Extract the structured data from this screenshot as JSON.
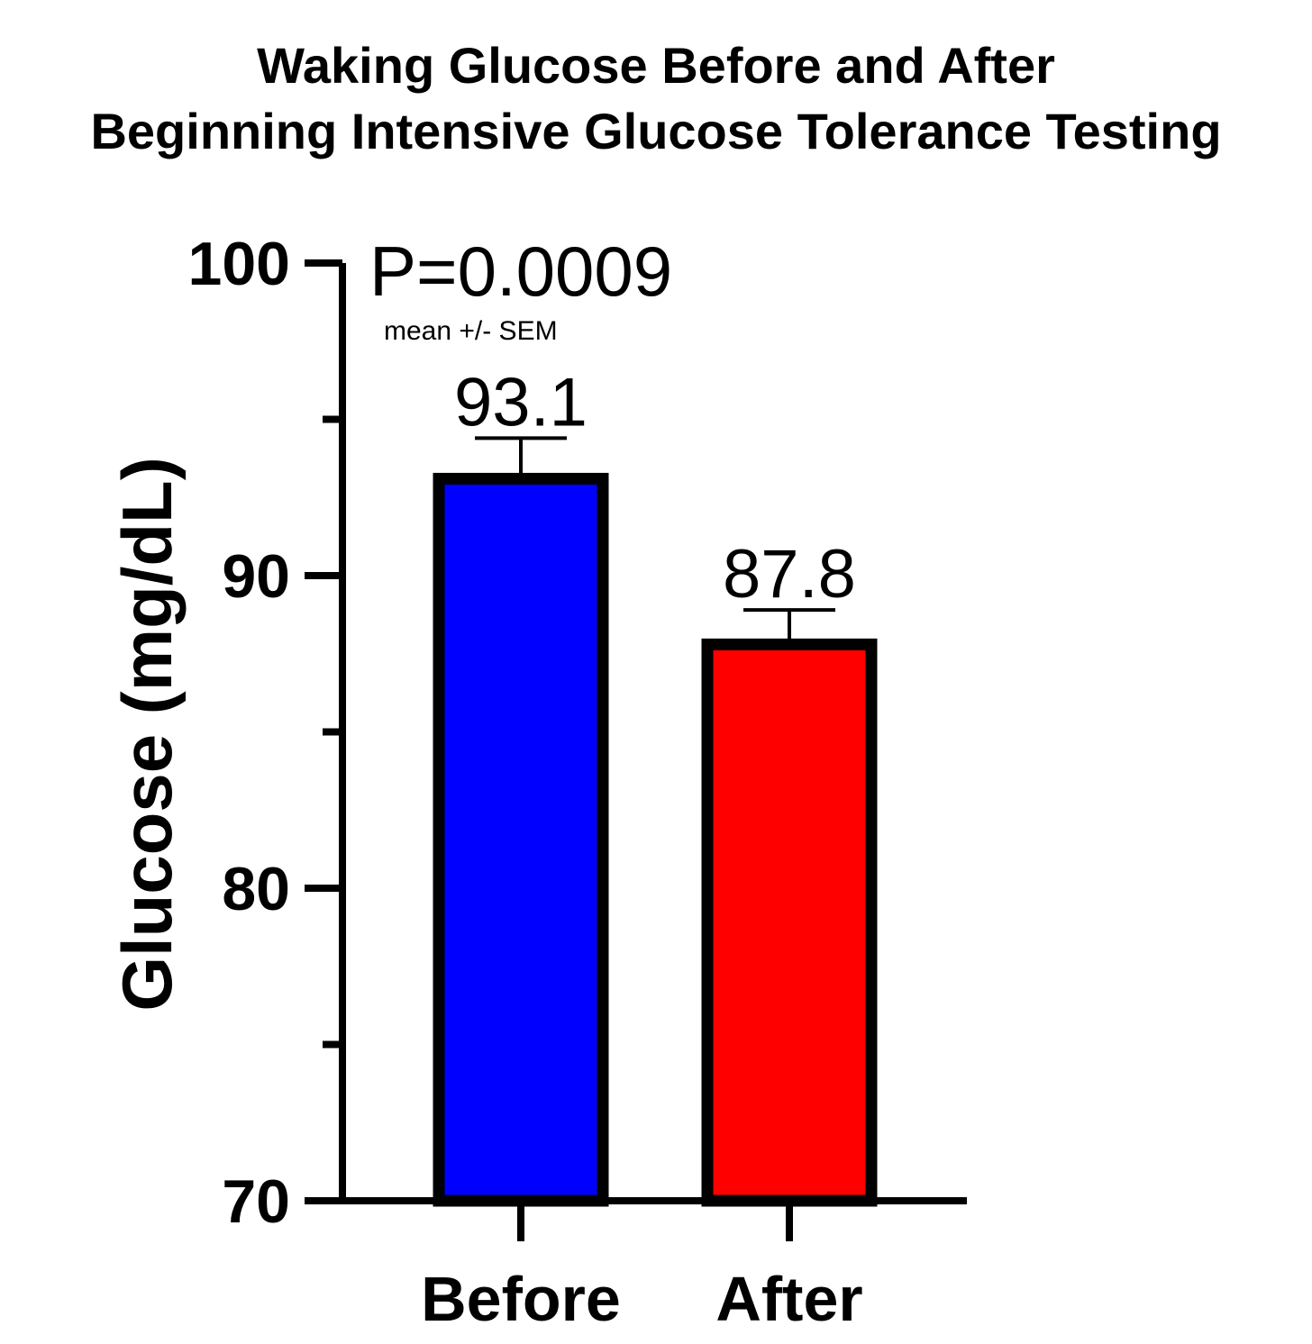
{
  "chart_data": {
    "type": "bar",
    "title_lines": [
      "Waking Glucose Before and After",
      "Beginning Intensive Glucose Tolerance Testing"
    ],
    "ylabel": "Glucose (mg/dL)",
    "xlabel": "",
    "categories": [
      "Before",
      "After"
    ],
    "values": [
      93.1,
      87.8
    ],
    "value_labels": [
      "93.1",
      "87.8"
    ],
    "errors": [
      1.3,
      1.1
    ],
    "colors": [
      "#0000ff",
      "#ff0000"
    ],
    "ylim": [
      70,
      100
    ],
    "yticks": [
      70,
      80,
      90,
      100
    ],
    "yticks_minor": [
      75,
      85,
      95
    ],
    "ytick_labels": [
      "70",
      "80",
      "90",
      "100"
    ],
    "annotation": "P=0.0009",
    "note": "mean +/- SEM",
    "grid": false
  }
}
